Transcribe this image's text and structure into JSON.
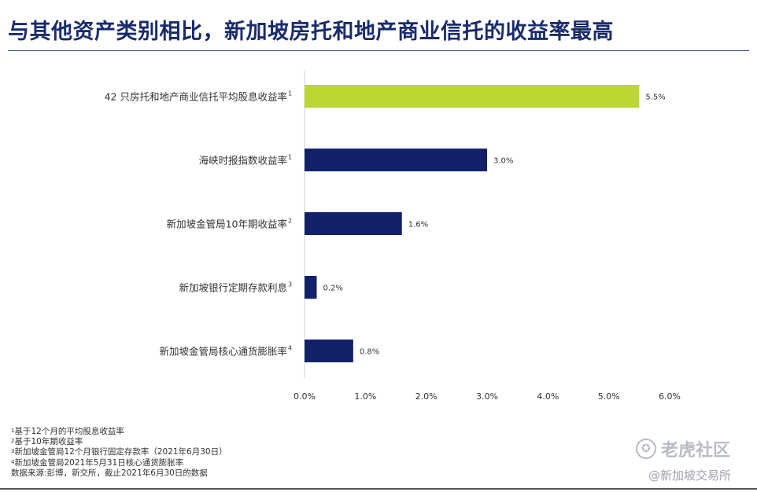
{
  "chart_data": {
    "type": "bar",
    "orientation": "horizontal",
    "title": "与其他资产类别相比，新加坡房托和地产商业信托的收益率最高",
    "categories": [
      {
        "label": "42 只房托和地产商业信托平均股息收益率",
        "sup": "1"
      },
      {
        "label": "海峡时报指数收益率",
        "sup": "1"
      },
      {
        "label": "新加坡金管局10年期收益率",
        "sup": "2"
      },
      {
        "label": "新加坡银行定期存款利息",
        "sup": "3"
      },
      {
        "label": "新加坡金管局核心通货膨胀率",
        "sup": "4"
      }
    ],
    "values": [
      5.5,
      3.0,
      1.6,
      0.2,
      0.8
    ],
    "value_labels": [
      "5.5%",
      "3.0%",
      "1.6%",
      "0.2%",
      "0.8%"
    ],
    "colors": [
      "#bed631",
      "#13216a",
      "#13216a",
      "#13216a",
      "#13216a"
    ],
    "xlim": [
      0,
      6
    ],
    "xticks": [
      "0.0%",
      "1.0%",
      "2.0%",
      "3.0%",
      "4.0%",
      "5.0%",
      "6.0%"
    ],
    "grid": false
  },
  "footnotes": [
    {
      "sup": "1",
      "text": "基于12个月的平均股息收益率"
    },
    {
      "sup": "2",
      "text": "基于10年期收益率"
    },
    {
      "sup": "3",
      "text": "新加坡金管局12个月银行固定存款率（2021年6月30日）"
    },
    {
      "sup": "4",
      "text": "新加坡金管局2021年5月31日核心通货膨胀率"
    },
    {
      "sup": "",
      "text": "数据来源:彭博，新交所，截止2021年6月30日的数据"
    }
  ],
  "watermark": {
    "brand": "老虎社区",
    "logo_icon": "tiger-logo-icon",
    "account": "@新加坡交易所"
  }
}
